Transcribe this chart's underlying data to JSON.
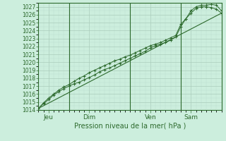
{
  "title": "",
  "xlabel": "Pression niveau de la mer( hPa )",
  "bg_color": "#cceedd",
  "grid_color_major": "#aaccbb",
  "grid_color_minor": "#bbddd0",
  "line_color": "#2d6a2d",
  "xlim": [
    0,
    72
  ],
  "ylim": [
    1014,
    1027.5
  ],
  "yticks": [
    1014,
    1015,
    1016,
    1017,
    1018,
    1019,
    1020,
    1021,
    1022,
    1023,
    1024,
    1025,
    1026,
    1027
  ],
  "xtick_positions": [
    4,
    20,
    44,
    60
  ],
  "xtick_labels": [
    "Jeu",
    "Dim",
    "Ven",
    "Sam"
  ],
  "vlines": [
    12,
    36,
    56
  ],
  "series1_x": [
    0,
    2,
    4,
    6,
    8,
    10,
    12,
    14,
    16,
    18,
    20,
    22,
    24,
    26,
    28,
    30,
    32,
    34,
    36,
    38,
    40,
    42,
    44,
    46,
    48,
    50,
    52,
    54,
    56,
    58,
    60,
    62,
    64,
    66,
    68,
    70,
    72
  ],
  "series1_y": [
    1014.2,
    1014.8,
    1015.3,
    1015.9,
    1016.3,
    1016.7,
    1017.0,
    1017.3,
    1017.5,
    1017.8,
    1018.1,
    1018.4,
    1018.8,
    1019.1,
    1019.3,
    1019.6,
    1019.9,
    1020.2,
    1020.5,
    1020.8,
    1021.1,
    1021.4,
    1021.8,
    1022.1,
    1022.3,
    1022.5,
    1022.8,
    1023.2,
    1024.5,
    1025.5,
    1026.5,
    1027.0,
    1027.2,
    1027.2,
    1027.3,
    1027.2,
    1026.5
  ],
  "series2_x": [
    0,
    2,
    4,
    6,
    8,
    10,
    12,
    14,
    16,
    18,
    20,
    22,
    24,
    26,
    28,
    30,
    32,
    34,
    36,
    38,
    40,
    42,
    44,
    46,
    48,
    50,
    52,
    54,
    56,
    58,
    60,
    62,
    64,
    66,
    68,
    70,
    72
  ],
  "series2_y": [
    1014.2,
    1014.9,
    1015.5,
    1016.0,
    1016.5,
    1016.9,
    1017.2,
    1017.6,
    1018.0,
    1018.3,
    1018.7,
    1019.0,
    1019.3,
    1019.6,
    1019.9,
    1020.2,
    1020.4,
    1020.7,
    1020.9,
    1021.2,
    1021.5,
    1021.8,
    1022.1,
    1022.3,
    1022.5,
    1022.8,
    1023.1,
    1023.4,
    1024.8,
    1025.5,
    1026.2,
    1026.8,
    1027.0,
    1027.0,
    1026.9,
    1026.7,
    1026.2
  ],
  "series3_x": [
    0,
    72
  ],
  "series3_y": [
    1014.2,
    1026.2
  ]
}
